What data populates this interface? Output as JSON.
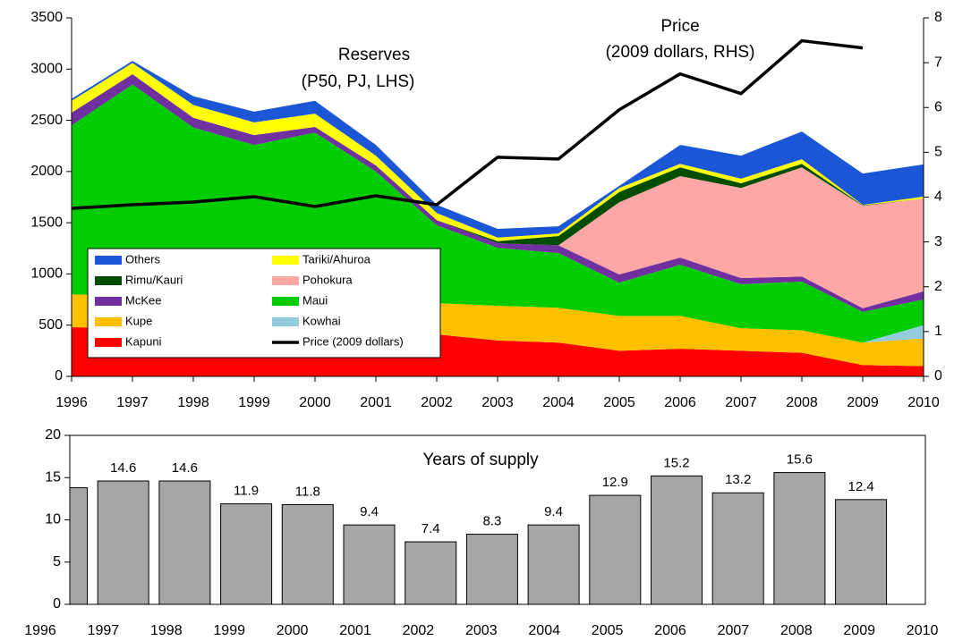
{
  "chart_data": [
    {
      "type": "area",
      "stacked": true,
      "annotations": [
        "Reserves",
        "(P50, PJ, LHS)",
        "Price",
        "(2009 dollars, RHS)"
      ],
      "categories": [
        "1996",
        "1997",
        "1998",
        "1999",
        "2000",
        "2001",
        "2002",
        "2003",
        "2004",
        "2005",
        "2006",
        "2007",
        "2008",
        "2009",
        "2010"
      ],
      "ylim": [
        0,
        3500
      ],
      "yticks": [
        0,
        500,
        1000,
        1500,
        2000,
        2500,
        3000,
        3500
      ],
      "y2lim": [
        0,
        8
      ],
      "y2ticks": [
        0,
        1,
        2,
        3,
        4,
        5,
        6,
        7,
        8
      ],
      "legend": "lower left",
      "series": [
        {
          "name": "Kapuni",
          "color": "#ff0000",
          "values": [
            480,
            470,
            460,
            450,
            440,
            420,
            410,
            350,
            330,
            250,
            270,
            250,
            230,
            110,
            100
          ]
        },
        {
          "name": "Kupe",
          "color": "#ffc000",
          "values": [
            320,
            320,
            310,
            300,
            300,
            300,
            305,
            340,
            340,
            340,
            320,
            220,
            220,
            220,
            270
          ]
        },
        {
          "name": "Kowhai",
          "color": "#92cddc",
          "values": [
            0,
            0,
            0,
            0,
            0,
            0,
            0,
            0,
            0,
            0,
            0,
            0,
            0,
            0,
            130
          ]
        },
        {
          "name": "Maui",
          "color": "#00cc00",
          "values": [
            1650,
            2060,
            1660,
            1510,
            1640,
            1280,
            760,
            565,
            535,
            325,
            500,
            430,
            475,
            300,
            250
          ]
        },
        {
          "name": "McKee",
          "color": "#7030a0",
          "values": [
            125,
            100,
            95,
            95,
            55,
            60,
            50,
            45,
            75,
            80,
            70,
            60,
            50,
            35,
            80
          ]
        },
        {
          "name": "Pohokura",
          "color": "#ffa6a6",
          "values": [
            0,
            0,
            0,
            0,
            0,
            0,
            0,
            0,
            0,
            705,
            795,
            880,
            1065,
            1000,
            905
          ]
        },
        {
          "name": "Rimu/Kauri",
          "color": "#004d00",
          "values": [
            0,
            0,
            0,
            0,
            0,
            0,
            0,
            20,
            90,
            100,
            85,
            45,
            35,
            5,
            0
          ]
        },
        {
          "name": "Tariki/Ahuroa",
          "color": "#ffff00",
          "values": [
            115,
            110,
            125,
            125,
            130,
            95,
            70,
            35,
            25,
            40,
            35,
            45,
            45,
            5,
            20
          ]
        },
        {
          "name": "Others",
          "color": "#1a56d6",
          "values": [
            20,
            20,
            85,
            105,
            125,
            105,
            80,
            85,
            70,
            20,
            185,
            225,
            270,
            305,
            315
          ]
        },
        {
          "name": "Price (2009 dollars)",
          "color": "#000000",
          "type": "line",
          "axis": "y2",
          "values": [
            3.75,
            3.83,
            3.89,
            4.01,
            3.79,
            4.03,
            3.83,
            4.89,
            4.85,
            5.95,
            6.75,
            6.31,
            7.49,
            7.33,
            null
          ]
        }
      ]
    },
    {
      "type": "bar",
      "title": "Years of supply",
      "categories": [
        "1996",
        "1997",
        "1998",
        "1999",
        "2000",
        "2001",
        "2002",
        "2003",
        "2004",
        "2005",
        "2006",
        "2007",
        "2008",
        "2009",
        "2010"
      ],
      "values": [
        13.8,
        14.6,
        14.6,
        11.9,
        11.8,
        9.4,
        7.4,
        8.3,
        9.4,
        12.9,
        15.2,
        13.2,
        15.6,
        12.4,
        null
      ],
      "value_labels": [
        null,
        "14.6",
        "14.6",
        "11.9",
        "11.8",
        "9.4",
        "7.4",
        "8.3",
        "9.4",
        "12.9",
        "15.2",
        "13.2",
        "15.6",
        "12.4",
        null
      ],
      "color": "#a6a6a6",
      "ylim": [
        0,
        20
      ],
      "yticks": [
        0,
        5,
        10,
        15,
        20
      ]
    }
  ]
}
